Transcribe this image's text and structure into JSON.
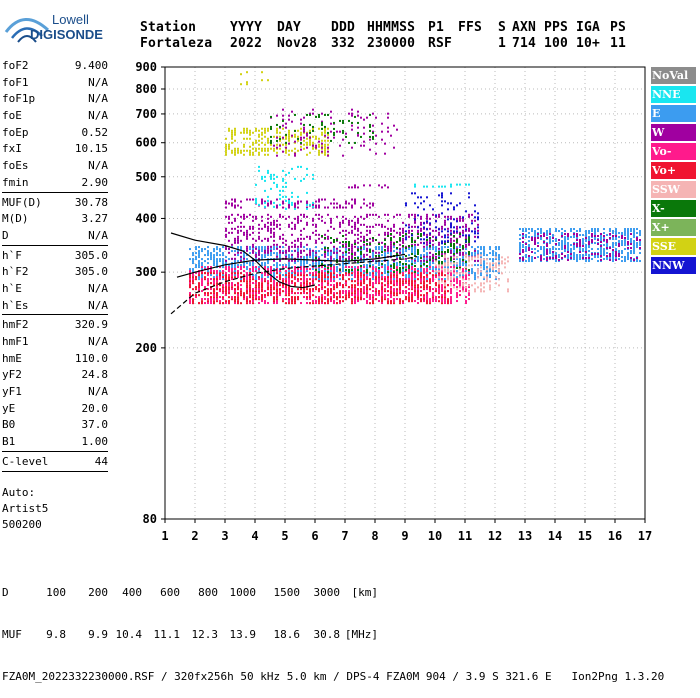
{
  "logo": {
    "line1": "Lowell",
    "line2": "DIGISONDE"
  },
  "header": {
    "columns": [
      "Station",
      "YYYY",
      "DAY",
      "DDD",
      "HHMMSS",
      "P1",
      "FFS",
      "S",
      "AXN",
      "PPS",
      "IGA",
      "PS"
    ],
    "values": [
      "Fortaleza",
      "2022",
      "Nov28",
      "332",
      "230000",
      "RSF",
      "",
      "1",
      "714",
      "100",
      "10+",
      "11"
    ]
  },
  "params": [
    {
      "name": "foF2",
      "value": "9.400"
    },
    {
      "name": "foF1",
      "value": "N/A"
    },
    {
      "name": "foF1p",
      "value": "N/A"
    },
    {
      "name": "foE",
      "value": "N/A"
    },
    {
      "name": "foEp",
      "value": "0.52"
    },
    {
      "name": "fxI",
      "value": "10.15"
    },
    {
      "name": "foEs",
      "value": "N/A"
    },
    {
      "name": "fmin",
      "value": "2.90"
    },
    {
      "sep": true
    },
    {
      "name": "MUF(D)",
      "value": "30.78"
    },
    {
      "name": "M(D)",
      "value": "3.27"
    },
    {
      "name": "D",
      "value": "N/A"
    },
    {
      "sep": true
    },
    {
      "name": "h`F",
      "value": "305.0"
    },
    {
      "name": "h`F2",
      "value": "305.0"
    },
    {
      "name": "h`E",
      "value": "N/A"
    },
    {
      "name": "h`Es",
      "value": "N/A"
    },
    {
      "sep": true
    },
    {
      "name": "hmF2",
      "value": "320.9"
    },
    {
      "name": "hmF1",
      "value": "N/A"
    },
    {
      "name": "hmE",
      "value": "110.0"
    },
    {
      "name": "yF2",
      "value": "24.8"
    },
    {
      "name": "yF1",
      "value": "N/A"
    },
    {
      "name": "yE",
      "value": "20.0"
    },
    {
      "name": "B0",
      "value": "37.0"
    },
    {
      "name": "B1",
      "value": "1.00"
    },
    {
      "sep": true
    },
    {
      "name": "C-level",
      "value": "44"
    },
    {
      "sep": true
    }
  ],
  "auto": {
    "line1": "Auto:",
    "line2": "Artist5",
    "line3": "500200"
  },
  "legend": [
    {
      "label": "NoVal",
      "color": "#8c8c8c"
    },
    {
      "label": "NNE",
      "color": "#19e6f0"
    },
    {
      "label": "E",
      "color": "#3c9cf0"
    },
    {
      "label": "W",
      "color": "#a000a0"
    },
    {
      "label": "Vo-",
      "color": "#ff1a8c"
    },
    {
      "label": "Vo+",
      "color": "#f01430"
    },
    {
      "label": "SSW",
      "color": "#f5b4b4"
    },
    {
      "label": "X-",
      "color": "#0a780a"
    },
    {
      "label": "X+",
      "color": "#7cb45a"
    },
    {
      "label": "SSE",
      "color": "#d2d214"
    },
    {
      "label": "NNW",
      "color": "#1414d2"
    }
  ],
  "footer": {
    "d_label": "D",
    "d_values": [
      "100",
      "200",
      "400",
      "600",
      "800",
      "1000",
      "1500",
      "3000",
      "[km]"
    ],
    "muf_label": "MUF",
    "muf_values": [
      "9.8",
      "9.9",
      "10.4",
      "11.1",
      "12.3",
      "13.9",
      "18.6",
      "30.8",
      "[MHz]"
    ],
    "line3": "FZA0M_2022332230000.RSF / 320fx256h 50 kHz 5.0 km / DPS-4 FZA0M 904 / 3.9 S 321.6 E   Ion2Png 1.3.20"
  },
  "chart_data": {
    "type": "scatter",
    "title": "",
    "xlabel": "",
    "ylabel": "",
    "xlim": [
      1,
      17
    ],
    "ylim": [
      80,
      900
    ],
    "y_scale": "log",
    "x_ticks": [
      "1",
      "2",
      "3",
      "4",
      "5",
      "6",
      "7",
      "8",
      "9",
      "10",
      "11",
      "12",
      "13",
      "14",
      "15",
      "16",
      "17"
    ],
    "y_ticks": [
      "80",
      "200",
      "300",
      "400",
      "500",
      "600",
      "700",
      "800",
      "900"
    ],
    "grid": "dotted",
    "legend_position": "right",
    "curves": [
      {
        "name": "",
        "color": "#000000",
        "points": [
          [
            1.2,
            240
          ],
          [
            2,
            268
          ],
          [
            3,
            285
          ],
          [
            4,
            298
          ],
          [
            5,
            306
          ],
          [
            6,
            310
          ],
          [
            7,
            314
          ],
          [
            8,
            318
          ],
          [
            9,
            322
          ],
          [
            9.4,
            326
          ]
        ]
      },
      {
        "name": "",
        "color": "#000000",
        "points": [
          [
            1.2,
            370
          ],
          [
            2,
            356
          ],
          [
            3,
            346
          ],
          [
            3.6,
            336
          ],
          [
            4,
            320
          ],
          [
            4.4,
            300
          ],
          [
            4.8,
            285
          ],
          [
            5.2,
            278
          ],
          [
            5.6,
            276
          ],
          [
            6,
            280
          ]
        ]
      },
      {
        "name": "",
        "color": "#000000",
        "points": [
          [
            1.4,
            292
          ],
          [
            2,
            300
          ],
          [
            3,
            312
          ],
          [
            4,
            320
          ],
          [
            5,
            322
          ],
          [
            6,
            320
          ],
          [
            7,
            318
          ],
          [
            8,
            322
          ],
          [
            9,
            330
          ]
        ]
      }
    ],
    "clusters": [
      {
        "series": "E",
        "x": [
          1.8,
          12.2
        ],
        "y": [
          290,
          345
        ],
        "density": 0.55
      },
      {
        "series": "Vo-",
        "x": [
          1.8,
          11.2
        ],
        "y": [
          255,
          310
        ],
        "density": 0.5
      },
      {
        "series": "Vo+",
        "x": [
          1.8,
          10.5
        ],
        "y": [
          255,
          300
        ],
        "density": 0.4
      },
      {
        "series": "W",
        "x": [
          3.0,
          11.5
        ],
        "y": [
          320,
          410
        ],
        "density": 0.3
      },
      {
        "series": "W",
        "x": [
          3.0,
          8.0
        ],
        "y": [
          425,
          445
        ],
        "density": 0.35
      },
      {
        "series": "W",
        "x": [
          7.0,
          8.5
        ],
        "y": [
          470,
          480
        ],
        "density": 0.4
      },
      {
        "series": "X-",
        "x": [
          6.0,
          11.2
        ],
        "y": [
          300,
          370
        ],
        "density": 0.2
      },
      {
        "series": "NNE",
        "x": [
          4.0,
          6.0
        ],
        "y": [
          420,
          530
        ],
        "density": 0.15
      },
      {
        "series": "NNE",
        "x": [
          9.2,
          11.2
        ],
        "y": [
          475,
          482
        ],
        "density": 0.4
      },
      {
        "series": "NNW",
        "x": [
          9.0,
          11.5
        ],
        "y": [
          350,
          460
        ],
        "density": 0.15
      },
      {
        "series": "SSE",
        "x": [
          3.0,
          6.5
        ],
        "y": [
          560,
          650
        ],
        "density": 0.45
      },
      {
        "series": "W",
        "x": [
          4.5,
          8.8
        ],
        "y": [
          560,
          720
        ],
        "density": 0.12
      },
      {
        "series": "X-",
        "x": [
          4.5,
          8.0
        ],
        "y": [
          600,
          700
        ],
        "density": 0.1
      },
      {
        "series": "E",
        "x": [
          12.8,
          16.9
        ],
        "y": [
          320,
          380
        ],
        "density": 0.6
      },
      {
        "series": "W",
        "x": [
          12.8,
          16.9
        ],
        "y": [
          320,
          370
        ],
        "density": 0.25
      },
      {
        "series": "SSW",
        "x": [
          10.0,
          12.5
        ],
        "y": [
          270,
          330
        ],
        "density": 0.3
      },
      {
        "series": "SSE",
        "x": [
          3.5,
          4.5
        ],
        "y": [
          820,
          880
        ],
        "density": 0.08
      }
    ]
  }
}
